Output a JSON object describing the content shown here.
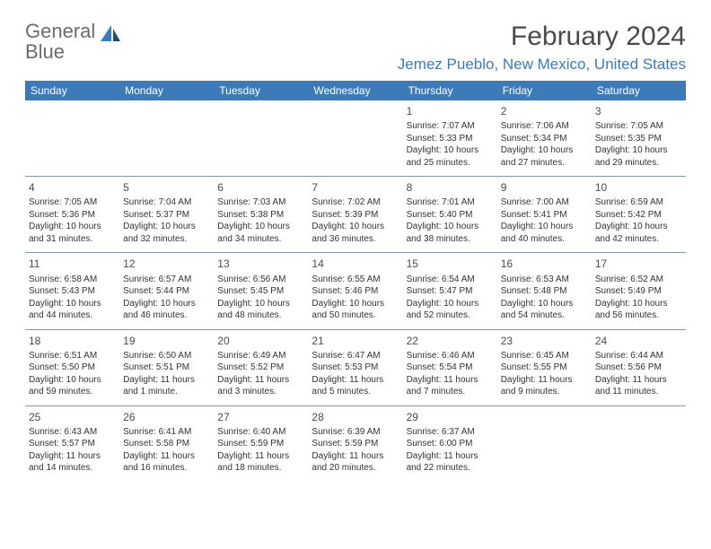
{
  "logo": {
    "word1": "General",
    "word2": "Blue"
  },
  "title": "February 2024",
  "location": "Jemez Pueblo, New Mexico, United States",
  "colors": {
    "header_bg": "#3d7bb8",
    "header_text": "#ffffff",
    "logo_gray": "#6b6b6b",
    "logo_blue": "#3d7bb8",
    "title_color": "#4a4a4a",
    "row_border": "#8096ab",
    "cell_text": "#333333",
    "background": "#ffffff"
  },
  "day_headers": [
    "Sunday",
    "Monday",
    "Tuesday",
    "Wednesday",
    "Thursday",
    "Friday",
    "Saturday"
  ],
  "weeks": [
    [
      null,
      null,
      null,
      null,
      {
        "num": "1",
        "sunrise": "Sunrise: 7:07 AM",
        "sunset": "Sunset: 5:33 PM",
        "daylight": "Daylight: 10 hours and 25 minutes."
      },
      {
        "num": "2",
        "sunrise": "Sunrise: 7:06 AM",
        "sunset": "Sunset: 5:34 PM",
        "daylight": "Daylight: 10 hours and 27 minutes."
      },
      {
        "num": "3",
        "sunrise": "Sunrise: 7:05 AM",
        "sunset": "Sunset: 5:35 PM",
        "daylight": "Daylight: 10 hours and 29 minutes."
      }
    ],
    [
      {
        "num": "4",
        "sunrise": "Sunrise: 7:05 AM",
        "sunset": "Sunset: 5:36 PM",
        "daylight": "Daylight: 10 hours and 31 minutes."
      },
      {
        "num": "5",
        "sunrise": "Sunrise: 7:04 AM",
        "sunset": "Sunset: 5:37 PM",
        "daylight": "Daylight: 10 hours and 32 minutes."
      },
      {
        "num": "6",
        "sunrise": "Sunrise: 7:03 AM",
        "sunset": "Sunset: 5:38 PM",
        "daylight": "Daylight: 10 hours and 34 minutes."
      },
      {
        "num": "7",
        "sunrise": "Sunrise: 7:02 AM",
        "sunset": "Sunset: 5:39 PM",
        "daylight": "Daylight: 10 hours and 36 minutes."
      },
      {
        "num": "8",
        "sunrise": "Sunrise: 7:01 AM",
        "sunset": "Sunset: 5:40 PM",
        "daylight": "Daylight: 10 hours and 38 minutes."
      },
      {
        "num": "9",
        "sunrise": "Sunrise: 7:00 AM",
        "sunset": "Sunset: 5:41 PM",
        "daylight": "Daylight: 10 hours and 40 minutes."
      },
      {
        "num": "10",
        "sunrise": "Sunrise: 6:59 AM",
        "sunset": "Sunset: 5:42 PM",
        "daylight": "Daylight: 10 hours and 42 minutes."
      }
    ],
    [
      {
        "num": "11",
        "sunrise": "Sunrise: 6:58 AM",
        "sunset": "Sunset: 5:43 PM",
        "daylight": "Daylight: 10 hours and 44 minutes."
      },
      {
        "num": "12",
        "sunrise": "Sunrise: 6:57 AM",
        "sunset": "Sunset: 5:44 PM",
        "daylight": "Daylight: 10 hours and 46 minutes."
      },
      {
        "num": "13",
        "sunrise": "Sunrise: 6:56 AM",
        "sunset": "Sunset: 5:45 PM",
        "daylight": "Daylight: 10 hours and 48 minutes."
      },
      {
        "num": "14",
        "sunrise": "Sunrise: 6:55 AM",
        "sunset": "Sunset: 5:46 PM",
        "daylight": "Daylight: 10 hours and 50 minutes."
      },
      {
        "num": "15",
        "sunrise": "Sunrise: 6:54 AM",
        "sunset": "Sunset: 5:47 PM",
        "daylight": "Daylight: 10 hours and 52 minutes."
      },
      {
        "num": "16",
        "sunrise": "Sunrise: 6:53 AM",
        "sunset": "Sunset: 5:48 PM",
        "daylight": "Daylight: 10 hours and 54 minutes."
      },
      {
        "num": "17",
        "sunrise": "Sunrise: 6:52 AM",
        "sunset": "Sunset: 5:49 PM",
        "daylight": "Daylight: 10 hours and 56 minutes."
      }
    ],
    [
      {
        "num": "18",
        "sunrise": "Sunrise: 6:51 AM",
        "sunset": "Sunset: 5:50 PM",
        "daylight": "Daylight: 10 hours and 59 minutes."
      },
      {
        "num": "19",
        "sunrise": "Sunrise: 6:50 AM",
        "sunset": "Sunset: 5:51 PM",
        "daylight": "Daylight: 11 hours and 1 minute."
      },
      {
        "num": "20",
        "sunrise": "Sunrise: 6:49 AM",
        "sunset": "Sunset: 5:52 PM",
        "daylight": "Daylight: 11 hours and 3 minutes."
      },
      {
        "num": "21",
        "sunrise": "Sunrise: 6:47 AM",
        "sunset": "Sunset: 5:53 PM",
        "daylight": "Daylight: 11 hours and 5 minutes."
      },
      {
        "num": "22",
        "sunrise": "Sunrise: 6:46 AM",
        "sunset": "Sunset: 5:54 PM",
        "daylight": "Daylight: 11 hours and 7 minutes."
      },
      {
        "num": "23",
        "sunrise": "Sunrise: 6:45 AM",
        "sunset": "Sunset: 5:55 PM",
        "daylight": "Daylight: 11 hours and 9 minutes."
      },
      {
        "num": "24",
        "sunrise": "Sunrise: 6:44 AM",
        "sunset": "Sunset: 5:56 PM",
        "daylight": "Daylight: 11 hours and 11 minutes."
      }
    ],
    [
      {
        "num": "25",
        "sunrise": "Sunrise: 6:43 AM",
        "sunset": "Sunset: 5:57 PM",
        "daylight": "Daylight: 11 hours and 14 minutes."
      },
      {
        "num": "26",
        "sunrise": "Sunrise: 6:41 AM",
        "sunset": "Sunset: 5:58 PM",
        "daylight": "Daylight: 11 hours and 16 minutes."
      },
      {
        "num": "27",
        "sunrise": "Sunrise: 6:40 AM",
        "sunset": "Sunset: 5:59 PM",
        "daylight": "Daylight: 11 hours and 18 minutes."
      },
      {
        "num": "28",
        "sunrise": "Sunrise: 6:39 AM",
        "sunset": "Sunset: 5:59 PM",
        "daylight": "Daylight: 11 hours and 20 minutes."
      },
      {
        "num": "29",
        "sunrise": "Sunrise: 6:37 AM",
        "sunset": "Sunset: 6:00 PM",
        "daylight": "Daylight: 11 hours and 22 minutes."
      },
      null,
      null
    ]
  ]
}
